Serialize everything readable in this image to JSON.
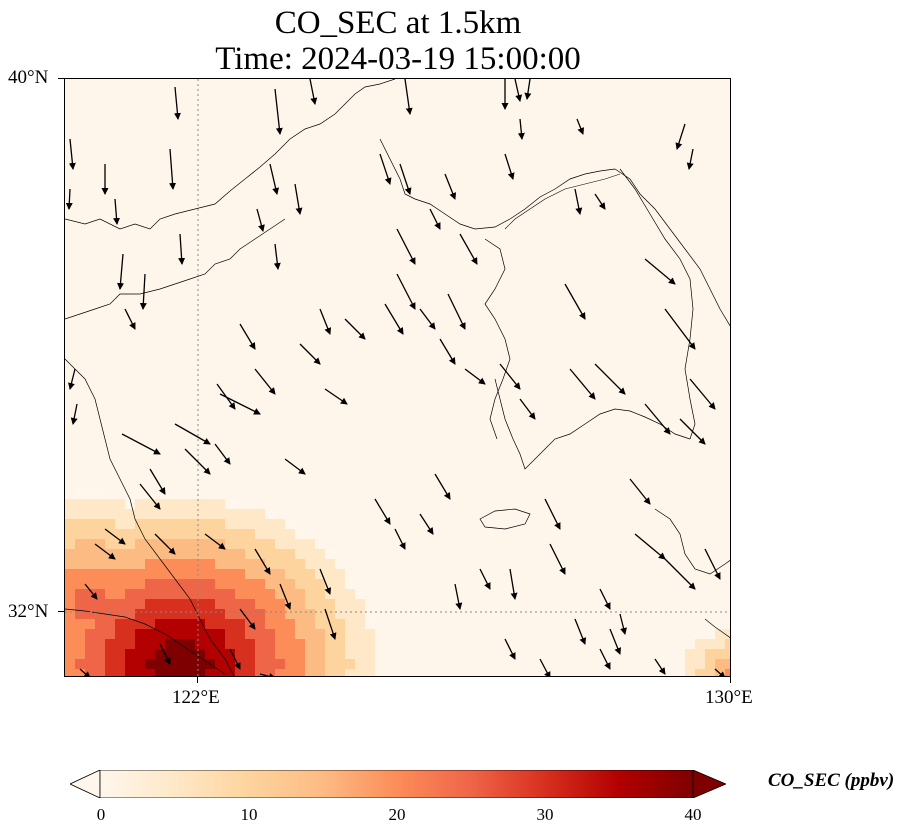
{
  "title_line1": "CO_SEC at 1.5km",
  "title_line2": "Time: 2024-03-19 15:00:00",
  "map": {
    "lat_ticks": [
      "40°N",
      "32°N"
    ],
    "lon_ticks": [
      "122°E",
      "130°E"
    ],
    "extent": {
      "lon_min": 120,
      "lon_max": 130,
      "lat_min": 31,
      "lat_max": 40
    },
    "gridlines": "dotted"
  },
  "colorbar": {
    "label": "CO_SEC (ppbv)",
    "ticks": [
      "0",
      "10",
      "20",
      "30",
      "40"
    ],
    "min": 0,
    "max": 40,
    "colormap": "OrRd",
    "colors": [
      "#fff7ec",
      "#fee8c8",
      "#fdd49e",
      "#fdbb84",
      "#fc8d59",
      "#ef6548",
      "#d7301f",
      "#b30000",
      "#7f0000"
    ],
    "extend": "both"
  },
  "coastline_color": "#000000",
  "wind_vectors": "black arrows"
}
